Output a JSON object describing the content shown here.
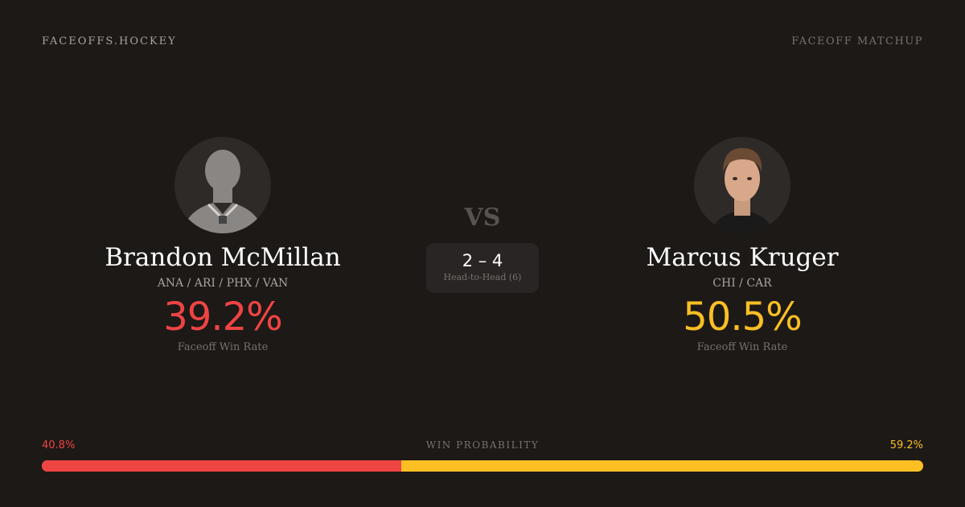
{
  "header": {
    "brand": "FACEOFFS.HOCKEY",
    "tag": "FACEOFF MATCHUP"
  },
  "colors": {
    "player1": "#ef4444",
    "player2": "#fbbf24",
    "background": "#1c1917"
  },
  "player1": {
    "name": "Brandon McMillan",
    "teams": "ANA / ARI / PHX / VAN",
    "win_rate": "39.2%",
    "win_rate_label": "Faceoff Win Rate",
    "avatar": "silhouette-placeholder"
  },
  "player2": {
    "name": "Marcus Kruger",
    "teams": "CHI / CAR",
    "win_rate": "50.5%",
    "win_rate_label": "Faceoff Win Rate",
    "avatar": "player-headshot"
  },
  "vs": "VS",
  "head_to_head": {
    "score": "2 – 4",
    "label": "Head-to-Head (6)"
  },
  "win_probability": {
    "title": "WIN PROBABILITY",
    "player1_label": "40.8%",
    "player2_label": "59.2%",
    "player1_percent": 40.8,
    "player2_percent": 59.2
  }
}
